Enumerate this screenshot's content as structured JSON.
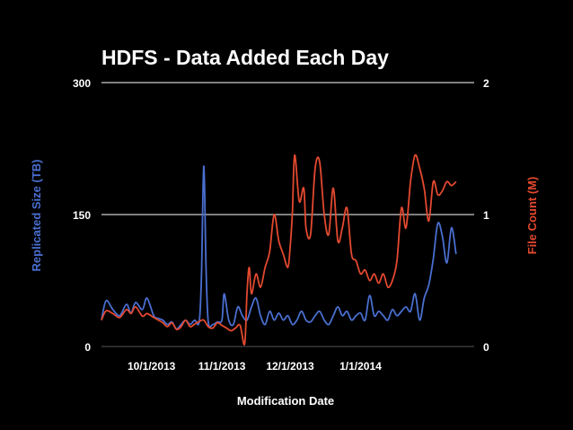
{
  "chart_data": {
    "type": "line",
    "title": "HDFS - Data Added Each Day",
    "xlabel": "Modification Date",
    "ylabel": "Replicated Size (TB)",
    "y2label": "File Count (M)",
    "x_start": "2013-09-09",
    "x_end": "2014-02-20",
    "x_ticks": [
      {
        "date": "2013-10-01",
        "label": "10/1/2013"
      },
      {
        "date": "2013-11-01",
        "label": "11/1/2013"
      },
      {
        "date": "2013-12-01",
        "label": "12/1/2013"
      },
      {
        "date": "2014-01-01",
        "label": "1/1/2014"
      }
    ],
    "ylim": [
      0,
      300
    ],
    "yticks": [
      {
        "value": 0,
        "label": "0"
      },
      {
        "value": 150,
        "label": "150"
      },
      {
        "value": 300,
        "label": "300"
      }
    ],
    "y2lim": [
      0,
      2
    ],
    "y2ticks": [
      {
        "value": 0,
        "label": "0"
      },
      {
        "value": 1,
        "label": "1"
      },
      {
        "value": 2,
        "label": "2"
      }
    ],
    "gridlines": [
      150,
      300
    ],
    "series": [
      {
        "name": "Replicated Size (TB)",
        "axis": "left",
        "color": "#4a6fd0",
        "points": [
          [
            "2013-09-09",
            30
          ],
          [
            "2013-09-11",
            52
          ],
          [
            "2013-09-14",
            42
          ],
          [
            "2013-09-17",
            35
          ],
          [
            "2013-09-20",
            48
          ],
          [
            "2013-09-22",
            38
          ],
          [
            "2013-09-24",
            50
          ],
          [
            "2013-09-27",
            42
          ],
          [
            "2013-09-29",
            55
          ],
          [
            "2013-10-02",
            35
          ],
          [
            "2013-10-04",
            32
          ],
          [
            "2013-10-06",
            30
          ],
          [
            "2013-10-08",
            25
          ],
          [
            "2013-10-10",
            28
          ],
          [
            "2013-10-12",
            20
          ],
          [
            "2013-10-14",
            25
          ],
          [
            "2013-10-16",
            30
          ],
          [
            "2013-10-18",
            25
          ],
          [
            "2013-10-20",
            30
          ],
          [
            "2013-10-22",
            28
          ],
          [
            "2013-10-23",
            80
          ],
          [
            "2013-10-24",
            205
          ],
          [
            "2013-10-25",
            90
          ],
          [
            "2013-10-26",
            28
          ],
          [
            "2013-10-28",
            25
          ],
          [
            "2013-10-30",
            28
          ],
          [
            "2013-11-01",
            30
          ],
          [
            "2013-11-02",
            60
          ],
          [
            "2013-11-04",
            30
          ],
          [
            "2013-11-06",
            25
          ],
          [
            "2013-11-08",
            45
          ],
          [
            "2013-11-10",
            35
          ],
          [
            "2013-11-12",
            30
          ],
          [
            "2013-11-14",
            45
          ],
          [
            "2013-11-16",
            55
          ],
          [
            "2013-11-18",
            35
          ],
          [
            "2013-11-20",
            25
          ],
          [
            "2013-11-22",
            40
          ],
          [
            "2013-11-24",
            30
          ],
          [
            "2013-11-26",
            38
          ],
          [
            "2013-11-28",
            30
          ],
          [
            "2013-11-30",
            35
          ],
          [
            "2013-12-02",
            25
          ],
          [
            "2013-12-04",
            30
          ],
          [
            "2013-12-06",
            40
          ],
          [
            "2013-12-08",
            30
          ],
          [
            "2013-12-10",
            28
          ],
          [
            "2013-12-12",
            35
          ],
          [
            "2013-12-14",
            40
          ],
          [
            "2013-12-16",
            30
          ],
          [
            "2013-12-18",
            25
          ],
          [
            "2013-12-20",
            35
          ],
          [
            "2013-12-22",
            45
          ],
          [
            "2013-12-24",
            35
          ],
          [
            "2013-12-26",
            40
          ],
          [
            "2013-12-28",
            30
          ],
          [
            "2013-12-30",
            35
          ],
          [
            "2014-01-01",
            38
          ],
          [
            "2014-01-03",
            30
          ],
          [
            "2014-01-05",
            58
          ],
          [
            "2014-01-07",
            35
          ],
          [
            "2014-01-09",
            40
          ],
          [
            "2014-01-11",
            35
          ],
          [
            "2014-01-13",
            30
          ],
          [
            "2014-01-15",
            42
          ],
          [
            "2014-01-17",
            35
          ],
          [
            "2014-01-19",
            40
          ],
          [
            "2014-01-21",
            45
          ],
          [
            "2014-01-23",
            40
          ],
          [
            "2014-01-25",
            60
          ],
          [
            "2014-01-27",
            30
          ],
          [
            "2014-01-29",
            55
          ],
          [
            "2014-01-31",
            70
          ],
          [
            "2014-02-02",
            100
          ],
          [
            "2014-02-04",
            140
          ],
          [
            "2014-02-06",
            125
          ],
          [
            "2014-02-08",
            95
          ],
          [
            "2014-02-10",
            135
          ],
          [
            "2014-02-12",
            105
          ]
        ]
      },
      {
        "name": "File Count (M)",
        "axis": "right",
        "color": "#e3492f",
        "points": [
          [
            "2013-09-09",
            0.2
          ],
          [
            "2013-09-11",
            0.27
          ],
          [
            "2013-09-14",
            0.25
          ],
          [
            "2013-09-17",
            0.22
          ],
          [
            "2013-09-20",
            0.28
          ],
          [
            "2013-09-22",
            0.25
          ],
          [
            "2013-09-24",
            0.3
          ],
          [
            "2013-09-27",
            0.23
          ],
          [
            "2013-09-29",
            0.25
          ],
          [
            "2013-10-02",
            0.22
          ],
          [
            "2013-10-04",
            0.2
          ],
          [
            "2013-10-06",
            0.18
          ],
          [
            "2013-10-08",
            0.15
          ],
          [
            "2013-10-10",
            0.18
          ],
          [
            "2013-10-12",
            0.13
          ],
          [
            "2013-10-14",
            0.15
          ],
          [
            "2013-10-16",
            0.2
          ],
          [
            "2013-10-18",
            0.15
          ],
          [
            "2013-10-20",
            0.17
          ],
          [
            "2013-10-22",
            0.19
          ],
          [
            "2013-10-24",
            0.2
          ],
          [
            "2013-10-26",
            0.15
          ],
          [
            "2013-10-28",
            0.14
          ],
          [
            "2013-10-30",
            0.18
          ],
          [
            "2013-11-01",
            0.16
          ],
          [
            "2013-11-03",
            0.14
          ],
          [
            "2013-11-05",
            0.12
          ],
          [
            "2013-11-07",
            0.14
          ],
          [
            "2013-11-09",
            0.16
          ],
          [
            "2013-11-11",
            0.02
          ],
          [
            "2013-11-12",
            0.4
          ],
          [
            "2013-11-13",
            0.6
          ],
          [
            "2013-11-14",
            0.4
          ],
          [
            "2013-11-16",
            0.55
          ],
          [
            "2013-11-18",
            0.45
          ],
          [
            "2013-11-20",
            0.6
          ],
          [
            "2013-11-22",
            0.72
          ],
          [
            "2013-11-24",
            1.0
          ],
          [
            "2013-11-26",
            0.8
          ],
          [
            "2013-11-28",
            0.7
          ],
          [
            "2013-11-30",
            0.6
          ],
          [
            "2013-12-01",
            0.75
          ],
          [
            "2013-12-02",
            1.02
          ],
          [
            "2013-12-03",
            1.45
          ],
          [
            "2013-12-05",
            1.1
          ],
          [
            "2013-12-07",
            1.2
          ],
          [
            "2013-12-08",
            0.9
          ],
          [
            "2013-12-10",
            0.85
          ],
          [
            "2013-12-12",
            1.35
          ],
          [
            "2013-12-14",
            1.4
          ],
          [
            "2013-12-16",
            1.0
          ],
          [
            "2013-12-18",
            0.85
          ],
          [
            "2013-12-20",
            1.2
          ],
          [
            "2013-12-22",
            0.8
          ],
          [
            "2013-12-24",
            0.9
          ],
          [
            "2013-12-26",
            1.05
          ],
          [
            "2013-12-28",
            0.7
          ],
          [
            "2013-12-30",
            0.65
          ],
          [
            "2014-01-01",
            0.55
          ],
          [
            "2014-01-03",
            0.58
          ],
          [
            "2014-01-05",
            0.5
          ],
          [
            "2014-01-07",
            0.55
          ],
          [
            "2014-01-09",
            0.48
          ],
          [
            "2014-01-11",
            0.55
          ],
          [
            "2014-01-13",
            0.45
          ],
          [
            "2014-01-15",
            0.5
          ],
          [
            "2014-01-17",
            0.65
          ],
          [
            "2014-01-19",
            1.05
          ],
          [
            "2014-01-21",
            0.9
          ],
          [
            "2014-01-23",
            1.25
          ],
          [
            "2014-01-25",
            1.45
          ],
          [
            "2014-01-27",
            1.35
          ],
          [
            "2014-01-29",
            1.2
          ],
          [
            "2014-01-31",
            0.95
          ],
          [
            "2014-02-02",
            1.25
          ],
          [
            "2014-02-04",
            1.15
          ],
          [
            "2014-02-06",
            1.18
          ],
          [
            "2014-02-08",
            1.25
          ],
          [
            "2014-02-10",
            1.22
          ],
          [
            "2014-02-12",
            1.25
          ]
        ]
      }
    ]
  }
}
